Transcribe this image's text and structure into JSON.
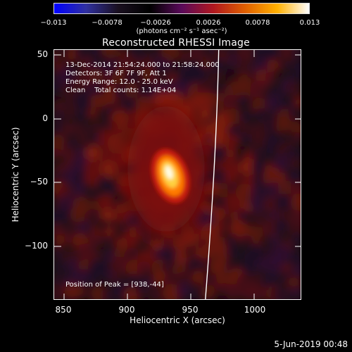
{
  "colorbar": {
    "ticks": [
      "−0.013",
      "−0.0078",
      "−0.0026",
      "0.0026",
      "0.0078",
      "0.013"
    ],
    "units": "(photons cm⁻² s⁻¹ asec⁻²)",
    "colormap": [
      "#0000ff",
      "#3030a0",
      "#1a1020",
      "#000000",
      "#5a0a5a",
      "#b01820",
      "#e06000",
      "#ffb000",
      "#ffffff"
    ]
  },
  "plot": {
    "title": "Reconstructed RHESSI Image",
    "info_lines": [
      "13-Dec-2014 21:54:24.000 to 21:58:24.000",
      "Detectors: 3F 6F 7F 9F, Att 1",
      "Energy Range: 12.0 - 25.0 keV",
      "Clean    Total counts: 1.14E+04"
    ],
    "peak_label": "Position of Peak = [938,-44]",
    "peak": {
      "x": 938,
      "y": -44
    },
    "xlabel": "Heliocentric X (arcsec)",
    "ylabel": "Heliocentric Y (arcsec)",
    "xticks": [
      "850",
      "900",
      "950",
      "1000"
    ],
    "yticks": [
      "50",
      "0",
      "−50",
      "−100"
    ],
    "xlim": [
      842,
      1036
    ],
    "ylim": [
      -140,
      52
    ]
  },
  "footer": {
    "timestamp": "5-Jun-2019 00:48"
  }
}
